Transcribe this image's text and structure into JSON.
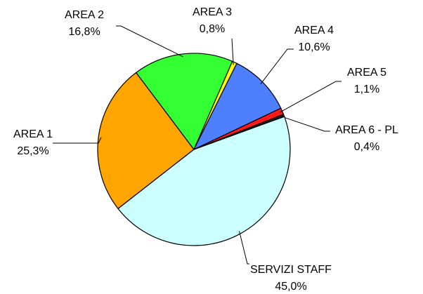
{
  "chart_data": {
    "type": "pie",
    "categories": [
      "AREA 1",
      "AREA 2",
      "AREA 3",
      "AREA 4",
      "AREA 5",
      "AREA 6 - PL",
      "SERVIZI STAFF"
    ],
    "values": [
      25.3,
      16.8,
      0.8,
      10.6,
      1.1,
      0.4,
      45.0
    ],
    "value_labels": [
      "25,3%",
      "16,8%",
      "0,8%",
      "10,6%",
      "1,1%",
      "0,4%",
      "45,0%"
    ],
    "colors": [
      "#ffa500",
      "#33ff33",
      "#ffff00",
      "#4d7fff",
      "#ff1a1a",
      "#202020",
      "#ccffff"
    ]
  }
}
